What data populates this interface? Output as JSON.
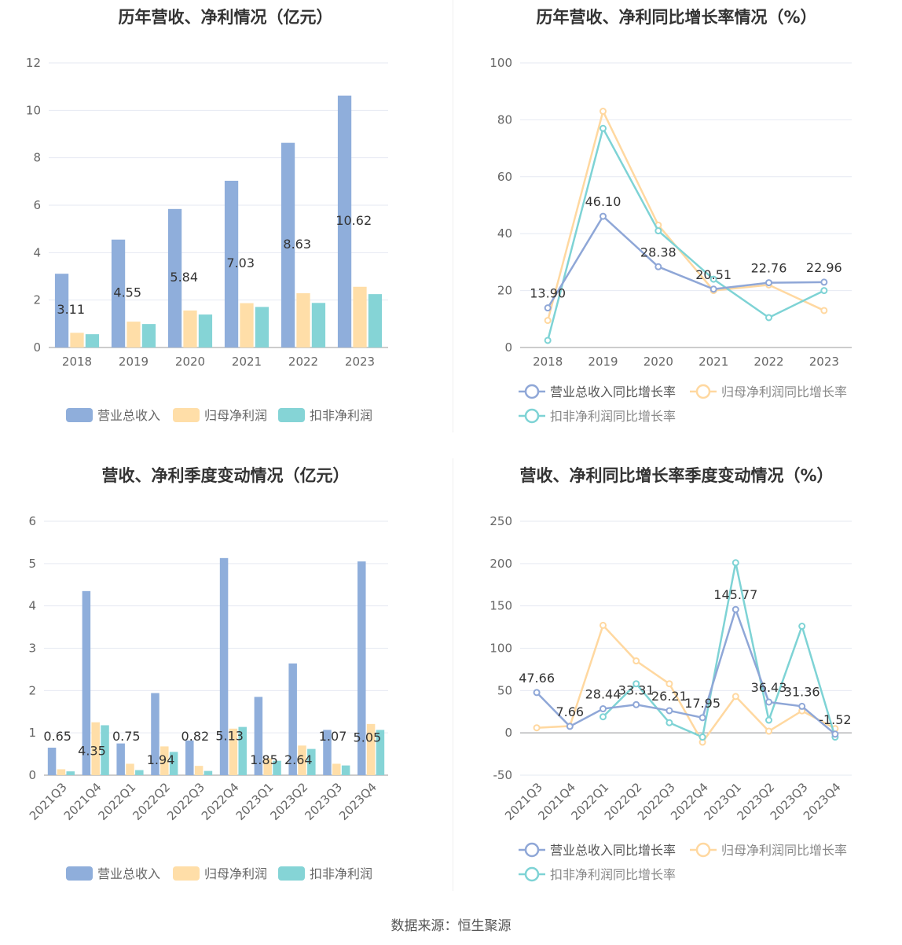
{
  "source": "数据来源：恒生聚源",
  "colors": {
    "blue": "#8FAEDB",
    "yellow": "#FFDEA8",
    "teal": "#85D4D6"
  },
  "chart_data": [
    {
      "id": "annual-amount",
      "type": "bar",
      "title": "历年营收、净利情况（亿元）",
      "categories": [
        "2018",
        "2019",
        "2020",
        "2021",
        "2022",
        "2023"
      ],
      "ylim": [
        0,
        12
      ],
      "yticks": [
        0,
        2,
        4,
        6,
        8,
        10,
        12
      ],
      "grid": true,
      "legend": "bottom",
      "series": [
        {
          "name": "营业总收入",
          "values": [
            3.11,
            4.55,
            5.84,
            7.03,
            8.63,
            10.62
          ],
          "labels": [
            "3.11",
            "4.55",
            "5.84",
            "7.03",
            "8.63",
            "10.62"
          ]
        },
        {
          "name": "归母净利润",
          "values": [
            0.62,
            1.09,
            1.56,
            1.87,
            2.29,
            2.56
          ]
        },
        {
          "name": "扣非净利润",
          "values": [
            0.56,
            0.99,
            1.39,
            1.71,
            1.88,
            2.25
          ]
        }
      ]
    },
    {
      "id": "annual-growth",
      "type": "line",
      "title": "历年营收、净利同比增长率情况（%）",
      "categories": [
        "2018",
        "2019",
        "2020",
        "2021",
        "2022",
        "2023"
      ],
      "ylim": [
        0,
        100
      ],
      "yticks": [
        0,
        20,
        40,
        60,
        80,
        100
      ],
      "grid": true,
      "legend": "bottom",
      "series": [
        {
          "name": "营业总收入同比增长率",
          "values": [
            13.9,
            46.1,
            28.38,
            20.51,
            22.76,
            22.96
          ],
          "labels": [
            "13.90",
            "46.10",
            "28.38",
            "20.51",
            "22.76",
            "22.96"
          ]
        },
        {
          "name": "归母净利润同比增长率",
          "values": [
            9.5,
            83,
            43,
            20,
            22,
            13
          ]
        },
        {
          "name": "扣非净利润同比增长率",
          "values": [
            2.5,
            77,
            41,
            24,
            10.5,
            20
          ]
        }
      ]
    },
    {
      "id": "quarter-amount",
      "type": "bar",
      "title": "营收、净利季度变动情况（亿元）",
      "categories": [
        "2021Q3",
        "2021Q4",
        "2022Q1",
        "2022Q2",
        "2022Q3",
        "2022Q4",
        "2023Q1",
        "2023Q2",
        "2023Q3",
        "2023Q4"
      ],
      "ylim": [
        0,
        6
      ],
      "yticks": [
        0,
        1,
        2,
        3,
        4,
        5,
        6
      ],
      "grid": true,
      "legend": "bottom",
      "series": [
        {
          "name": "营业总收入",
          "values": [
            0.65,
            4.35,
            0.75,
            1.94,
            0.82,
            5.13,
            1.85,
            2.64,
            1.07,
            5.05
          ],
          "labels": [
            "0.65",
            "4.35",
            "0.75",
            "1.94",
            "0.82",
            "5.13",
            "1.85",
            "2.64",
            "1.07",
            "5.05"
          ]
        },
        {
          "name": "归母净利润",
          "values": [
            0.14,
            1.25,
            0.27,
            0.68,
            0.22,
            1.1,
            0.4,
            0.7,
            0.27,
            1.21
          ]
        },
        {
          "name": "扣非净利润",
          "values": [
            0.09,
            1.18,
            0.12,
            0.55,
            0.1,
            1.14,
            0.34,
            0.62,
            0.23,
            1.07
          ]
        }
      ]
    },
    {
      "id": "quarter-growth",
      "type": "line",
      "title": "营收、净利同比增长率季度变动情况（%）",
      "categories": [
        "2021Q3",
        "2021Q4",
        "2022Q1",
        "2022Q2",
        "2022Q3",
        "2022Q4",
        "2023Q1",
        "2023Q2",
        "2023Q3",
        "2023Q4"
      ],
      "ylim": [
        -50,
        250
      ],
      "yticks": [
        -50,
        0,
        50,
        100,
        150,
        200,
        250
      ],
      "grid": true,
      "legend": "bottom",
      "series": [
        {
          "name": "营业总收入同比增长率",
          "values": [
            47.66,
            7.66,
            28.44,
            33.31,
            26.21,
            17.95,
            145.77,
            36.43,
            31.36,
            -1.52
          ],
          "labels": [
            "47.66",
            "7.66",
            "28.44",
            "33.31",
            "26.21",
            "17.95",
            "145.77",
            "36.43",
            "31.36",
            "-1.52"
          ]
        },
        {
          "name": "归母净利润同比增长率",
          "values": [
            6,
            8,
            127,
            85,
            58,
            -11,
            43,
            2,
            26,
            5
          ]
        },
        {
          "name": "扣非净利润同比增长率",
          "values": [
            null,
            null,
            19,
            58,
            12,
            -5,
            201,
            15,
            126,
            -5
          ]
        }
      ]
    }
  ]
}
